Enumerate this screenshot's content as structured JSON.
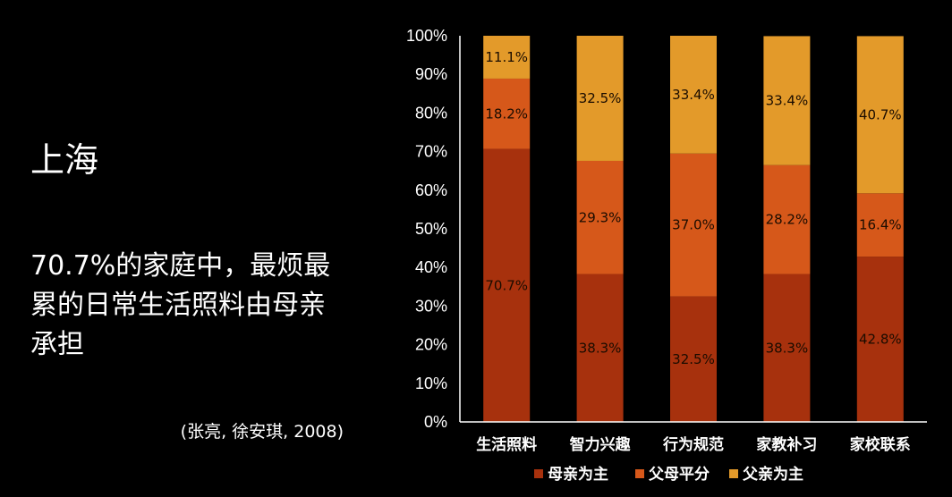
{
  "slide": {
    "title": "上海",
    "body": "70.7%的家庭中，最烦最累的日常生活照料由母亲承担",
    "citation": "(张亮, 徐安琪, 2008)"
  },
  "chart_data": {
    "type": "bar",
    "stacked": true,
    "percent_stacked": true,
    "categories": [
      "生活照料",
      "智力兴趣",
      "行为规范",
      "家教补习",
      "家校联系"
    ],
    "series": [
      {
        "name": "母亲为主",
        "color": "#a7310d",
        "values": [
          70.7,
          38.3,
          32.5,
          38.3,
          42.8
        ],
        "labels": [
          "70.7%",
          "38.3%",
          "32.5%",
          "38.3%",
          "42.8%"
        ]
      },
      {
        "name": "父母平分",
        "color": "#d6581a",
        "values": [
          18.2,
          29.3,
          37.0,
          28.2,
          16.4
        ],
        "labels": [
          "18.2%",
          "29.3%",
          "37.0%",
          "28.2%",
          "16.4%"
        ]
      },
      {
        "name": "父亲为主",
        "color": "#e39a2a",
        "values": [
          11.1,
          32.5,
          33.4,
          33.4,
          40.7
        ],
        "labels": [
          "11.1%",
          "32.5%",
          "33.4%",
          "33.4%",
          "40.7%"
        ]
      }
    ],
    "ylim": [
      0,
      100
    ],
    "yticks": [
      "0%",
      "10%",
      "20%",
      "30%",
      "40%",
      "50%",
      "60%",
      "70%",
      "80%",
      "90%",
      "100%"
    ],
    "grid": false,
    "legend": "bottom"
  }
}
